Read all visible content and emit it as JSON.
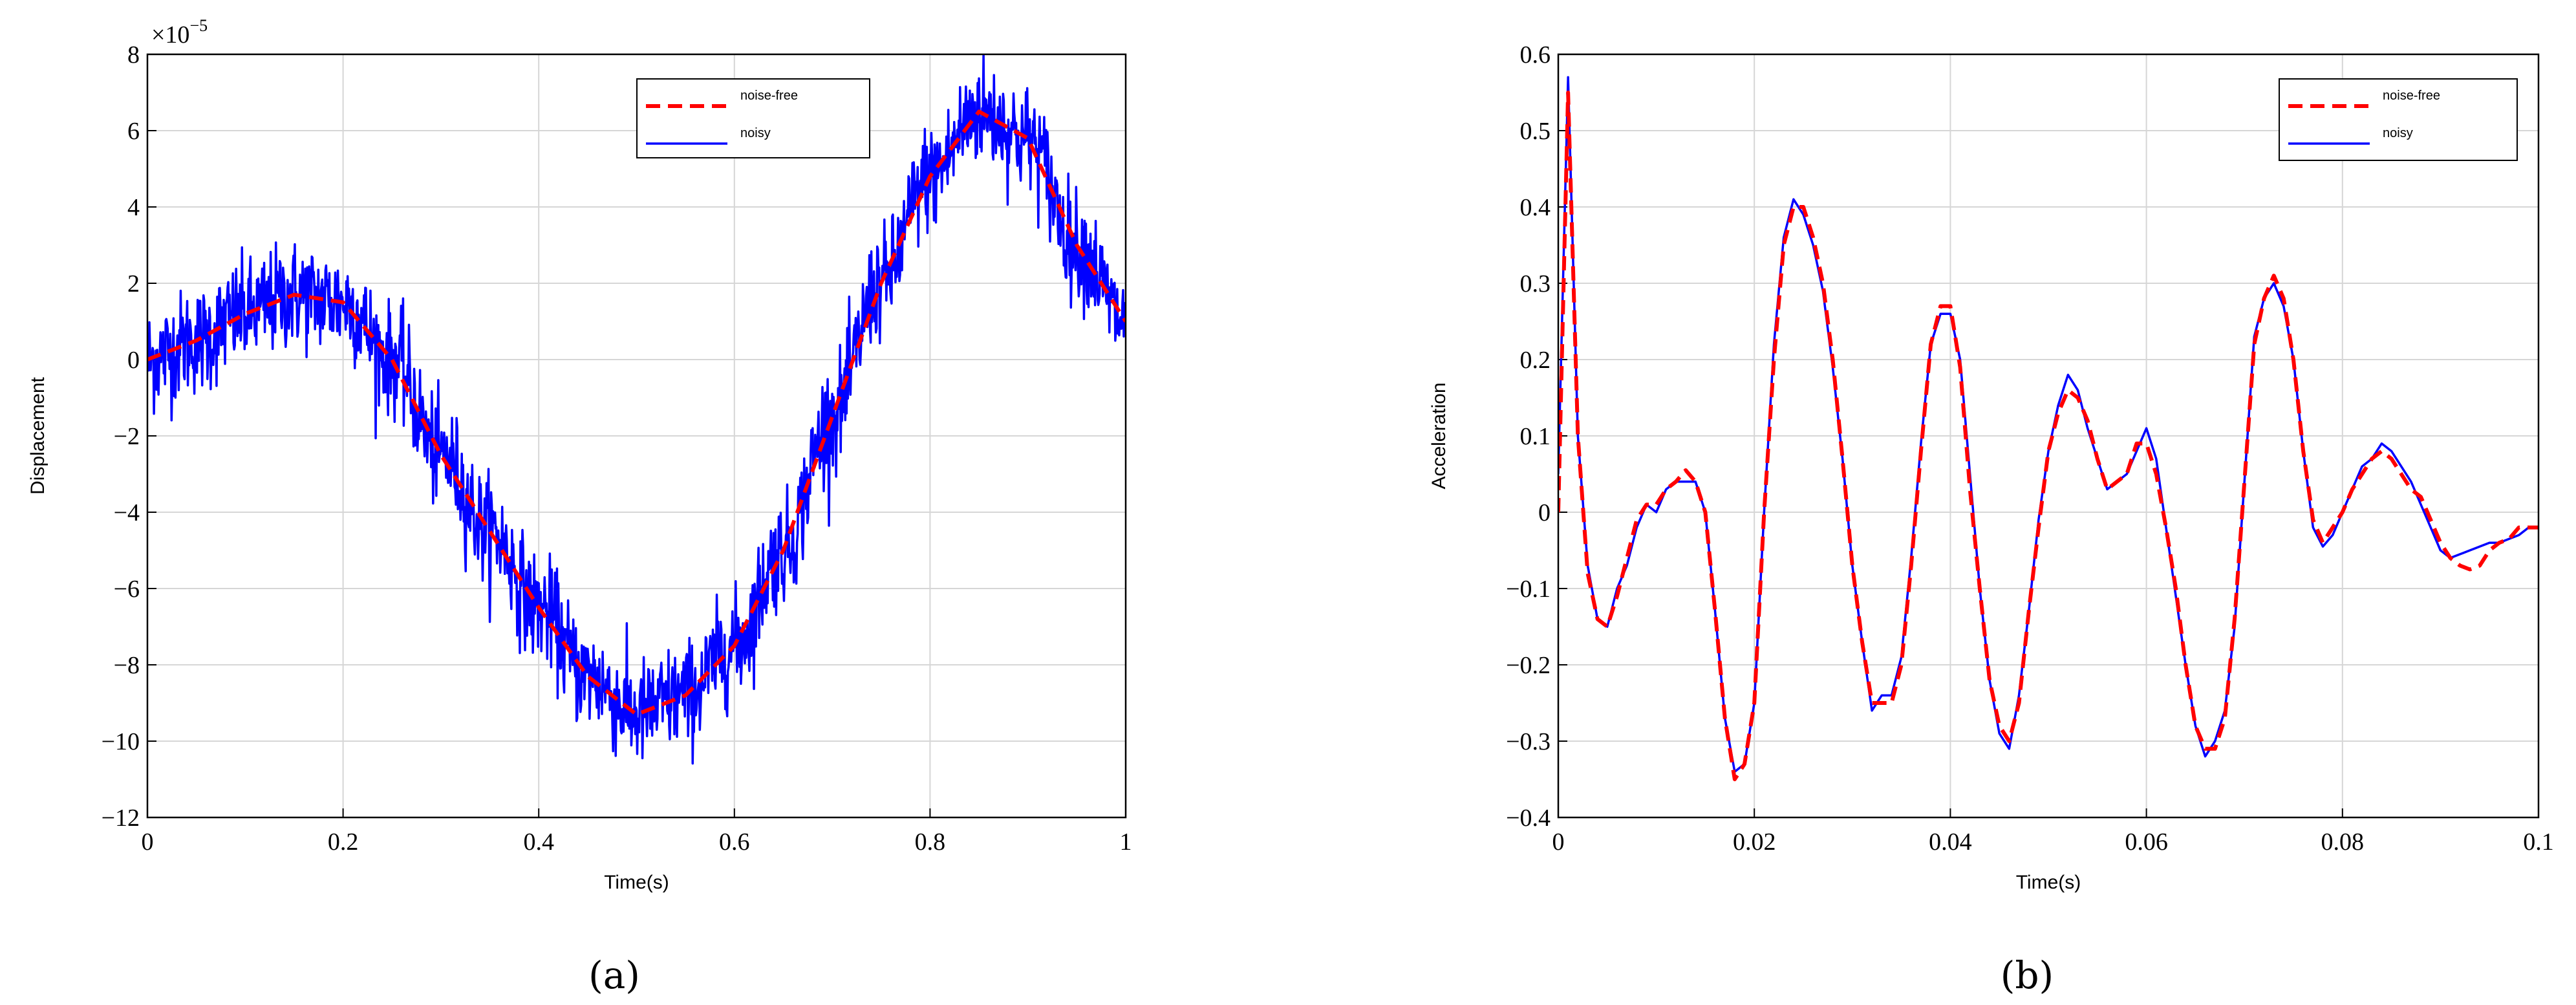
{
  "chart_data": [
    {
      "type": "line",
      "panel_label": "(a)",
      "xlabel": "Time(s)",
      "ylabel": "Displacement",
      "xlim": [
        0,
        1
      ],
      "ylim": [
        -12,
        8
      ],
      "x_ticks": [
        "0",
        "0.2",
        "0.4",
        "0.6",
        "0.8",
        "1"
      ],
      "y_ticks": [
        "8",
        "6",
        "4",
        "2",
        "0",
        "−2",
        "−4",
        "−6",
        "−8",
        "−10",
        "−12"
      ],
      "y_multiplier": "×10",
      "y_multiplier_exponent": "−5",
      "grid": true,
      "legend_position": "top-right",
      "series": [
        {
          "name": "noise-free",
          "color": "#ff0000",
          "style": "dashed",
          "x": [
            0,
            0.05,
            0.1,
            0.15,
            0.2,
            0.25,
            0.3,
            0.35,
            0.4,
            0.45,
            0.5,
            0.55,
            0.6,
            0.65,
            0.7,
            0.75,
            0.8,
            0.85,
            0.9,
            0.95,
            1.0
          ],
          "values": [
            0,
            0.5,
            1.2,
            1.7,
            1.5,
            0,
            -2.5,
            -4.5,
            -6.5,
            -8.3,
            -9.3,
            -8.8,
            -7.5,
            -5,
            -1.5,
            2,
            4.8,
            6.5,
            5.8,
            3,
            1
          ]
        },
        {
          "name": "noisy",
          "color": "#0000ff",
          "style": "solid",
          "noise_amplitude": 0.7
        }
      ]
    },
    {
      "type": "line",
      "panel_label": "(b)",
      "xlabel": "Time(s)",
      "ylabel": "Acceleration",
      "xlim": [
        0,
        0.1
      ],
      "ylim": [
        -0.4,
        0.6
      ],
      "x_ticks": [
        "0",
        "0.02",
        "0.04",
        "0.06",
        "0.08",
        "0.1"
      ],
      "y_ticks": [
        "0.6",
        "0.5",
        "0.4",
        "0.3",
        "0.2",
        "0.1",
        "0",
        "−0.1",
        "−0.2",
        "−0.3",
        "−0.4"
      ],
      "grid": true,
      "legend_position": "top-right",
      "series": [
        {
          "name": "noise-free",
          "color": "#ff0000",
          "style": "dashed",
          "x": [
            0,
            0.001,
            0.002,
            0.003,
            0.004,
            0.005,
            0.006,
            0.007,
            0.008,
            0.009,
            0.01,
            0.011,
            0.012,
            0.013,
            0.014,
            0.015,
            0.016,
            0.017,
            0.018,
            0.019,
            0.02,
            0.021,
            0.022,
            0.023,
            0.024,
            0.025,
            0.026,
            0.027,
            0.028,
            0.029,
            0.03,
            0.031,
            0.032,
            0.033,
            0.034,
            0.035,
            0.036,
            0.037,
            0.038,
            0.039,
            0.04,
            0.041,
            0.042,
            0.043,
            0.044,
            0.045,
            0.046,
            0.047,
            0.048,
            0.049,
            0.05,
            0.051,
            0.052,
            0.053,
            0.054,
            0.055,
            0.056,
            0.057,
            0.058,
            0.059,
            0.06,
            0.061,
            0.062,
            0.063,
            0.064,
            0.065,
            0.066,
            0.067,
            0.068,
            0.069,
            0.07,
            0.071,
            0.072,
            0.073,
            0.074,
            0.075,
            0.076,
            0.077,
            0.078,
            0.079,
            0.08,
            0.081,
            0.082,
            0.083,
            0.084,
            0.085,
            0.086,
            0.087,
            0.088,
            0.089,
            0.09,
            0.091,
            0.092,
            0.093,
            0.094,
            0.095,
            0.096,
            0.097,
            0.098,
            0.099,
            0.1
          ],
          "values": [
            0,
            0.55,
            0.1,
            -0.08,
            -0.14,
            -0.15,
            -0.11,
            -0.06,
            -0.01,
            0.01,
            0.01,
            0.03,
            0.04,
            0.055,
            0.04,
            0,
            -0.13,
            -0.27,
            -0.35,
            -0.33,
            -0.25,
            0,
            0.2,
            0.35,
            0.4,
            0.4,
            0.36,
            0.3,
            0.2,
            0.07,
            -0.07,
            -0.17,
            -0.25,
            -0.25,
            -0.25,
            -0.2,
            -0.07,
            0.08,
            0.22,
            0.27,
            0.27,
            0.19,
            0.03,
            -0.1,
            -0.22,
            -0.28,
            -0.3,
            -0.25,
            -0.13,
            -0.02,
            0.08,
            0.13,
            0.16,
            0.15,
            0.12,
            0.07,
            0.03,
            0.04,
            0.05,
            0.09,
            0.09,
            0.05,
            -0.02,
            -0.1,
            -0.2,
            -0.28,
            -0.31,
            -0.31,
            -0.27,
            -0.14,
            0.04,
            0.22,
            0.28,
            0.31,
            0.28,
            0.2,
            0.08,
            -0.01,
            -0.04,
            -0.02,
            0,
            0.03,
            0.05,
            0.07,
            0.08,
            0.07,
            0.05,
            0.03,
            0.02,
            -0.01,
            -0.04,
            -0.06,
            -0.07,
            -0.075,
            -0.07,
            -0.05,
            -0.04,
            -0.035,
            -0.02,
            -0.02,
            -0.02
          ]
        },
        {
          "name": "noisy",
          "color": "#0000ff",
          "style": "solid",
          "x": [
            0,
            0.001,
            0.002,
            0.003,
            0.004,
            0.005,
            0.006,
            0.007,
            0.008,
            0.009,
            0.01,
            0.011,
            0.012,
            0.013,
            0.014,
            0.015,
            0.016,
            0.017,
            0.018,
            0.019,
            0.02,
            0.021,
            0.022,
            0.023,
            0.024,
            0.025,
            0.026,
            0.027,
            0.028,
            0.029,
            0.03,
            0.031,
            0.032,
            0.033,
            0.034,
            0.035,
            0.036,
            0.037,
            0.038,
            0.039,
            0.04,
            0.041,
            0.042,
            0.043,
            0.044,
            0.045,
            0.046,
            0.047,
            0.048,
            0.049,
            0.05,
            0.051,
            0.052,
            0.053,
            0.054,
            0.055,
            0.056,
            0.057,
            0.058,
            0.059,
            0.06,
            0.061,
            0.062,
            0.063,
            0.064,
            0.065,
            0.066,
            0.067,
            0.068,
            0.069,
            0.07,
            0.071,
            0.072,
            0.073,
            0.074,
            0.075,
            0.076,
            0.077,
            0.078,
            0.079,
            0.08,
            0.081,
            0.082,
            0.083,
            0.084,
            0.085,
            0.086,
            0.087,
            0.088,
            0.089,
            0.09,
            0.091,
            0.092,
            0.093,
            0.094,
            0.095,
            0.096,
            0.097,
            0.098,
            0.099,
            0.1
          ],
          "values": [
            0.05,
            0.57,
            0.1,
            -0.07,
            -0.14,
            -0.15,
            -0.1,
            -0.07,
            -0.02,
            0.01,
            0,
            0.03,
            0.04,
            0.04,
            0.04,
            0,
            -0.13,
            -0.27,
            -0.34,
            -0.33,
            -0.25,
            0,
            0.22,
            0.36,
            0.41,
            0.39,
            0.35,
            0.29,
            0.19,
            0.07,
            -0.07,
            -0.17,
            -0.26,
            -0.24,
            -0.24,
            -0.19,
            -0.06,
            0.09,
            0.22,
            0.26,
            0.26,
            0.2,
            0.05,
            -0.1,
            -0.22,
            -0.29,
            -0.31,
            -0.24,
            -0.13,
            -0.01,
            0.08,
            0.14,
            0.18,
            0.16,
            0.11,
            0.07,
            0.03,
            0.04,
            0.05,
            0.08,
            0.11,
            0.07,
            -0.02,
            -0.11,
            -0.2,
            -0.28,
            -0.32,
            -0.3,
            -0.26,
            -0.15,
            0.04,
            0.23,
            0.28,
            0.3,
            0.27,
            0.2,
            0.08,
            -0.02,
            -0.045,
            -0.03,
            0,
            0.03,
            0.06,
            0.07,
            0.09,
            0.08,
            0.06,
            0.04,
            0.01,
            -0.02,
            -0.05,
            -0.06,
            -0.055,
            -0.05,
            -0.045,
            -0.04,
            -0.04,
            -0.035,
            -0.03,
            -0.02,
            -0.02
          ]
        }
      ]
    }
  ]
}
